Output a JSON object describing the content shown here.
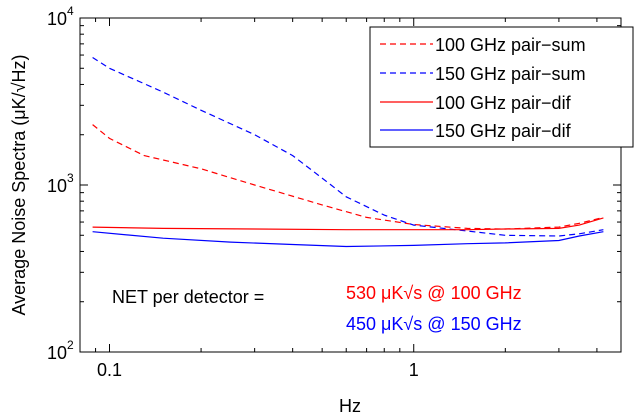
{
  "chart_data": {
    "type": "line",
    "title": "",
    "xlabel": "Hz",
    "ylabel": "Average Noise Spectra (μK/√Hz)",
    "xscale": "log",
    "yscale": "log",
    "xlim": [
      0.08,
      4.8
    ],
    "ylim": [
      100,
      10000
    ],
    "x_ticks": [
      {
        "value": 0.1,
        "label": "0.1"
      },
      {
        "value": 1,
        "label": "1"
      }
    ],
    "y_ticks": [
      {
        "value": 100,
        "base": "10",
        "exp": "2"
      },
      {
        "value": 1000,
        "base": "10",
        "exp": "3"
      },
      {
        "value": 10000,
        "base": "10",
        "exp": "4"
      }
    ],
    "grid": false,
    "legend_position": "top-right",
    "series": [
      {
        "name": "100 GHz pair−sum",
        "color": "#ff0000",
        "dash": "dashed",
        "points": [
          [
            0.088,
            2300
          ],
          [
            0.1,
            1900
          ],
          [
            0.13,
            1500
          ],
          [
            0.2,
            1250
          ],
          [
            0.3,
            1000
          ],
          [
            0.5,
            760
          ],
          [
            0.7,
            640
          ],
          [
            1.0,
            580
          ],
          [
            1.5,
            550
          ],
          [
            2.0,
            545
          ],
          [
            3.0,
            560
          ],
          [
            3.5,
            590
          ],
          [
            4.2,
            640
          ]
        ]
      },
      {
        "name": "150 GHz pair−sum",
        "color": "#0000ff",
        "dash": "dashed",
        "points": [
          [
            0.088,
            5800
          ],
          [
            0.1,
            5000
          ],
          [
            0.15,
            3600
          ],
          [
            0.2,
            2800
          ],
          [
            0.3,
            2000
          ],
          [
            0.4,
            1500
          ],
          [
            0.5,
            1100
          ],
          [
            0.6,
            850
          ],
          [
            0.8,
            660
          ],
          [
            1.0,
            575
          ],
          [
            1.5,
            530
          ],
          [
            2.0,
            500
          ],
          [
            3.0,
            495
          ],
          [
            3.5,
            510
          ],
          [
            4.2,
            540
          ]
        ]
      },
      {
        "name": "100 GHz pair−dif",
        "color": "#ff0000",
        "dash": "solid",
        "points": [
          [
            0.088,
            560
          ],
          [
            0.15,
            550
          ],
          [
            0.3,
            545
          ],
          [
            0.6,
            540
          ],
          [
            1.0,
            540
          ],
          [
            1.5,
            540
          ],
          [
            2.0,
            545
          ],
          [
            3.0,
            550
          ],
          [
            3.5,
            575
          ],
          [
            4.2,
            635
          ]
        ]
      },
      {
        "name": "150 GHz pair−dif",
        "color": "#0000ff",
        "dash": "solid",
        "points": [
          [
            0.088,
            525
          ],
          [
            0.15,
            480
          ],
          [
            0.25,
            455
          ],
          [
            0.4,
            440
          ],
          [
            0.6,
            428
          ],
          [
            1.0,
            435
          ],
          [
            1.5,
            445
          ],
          [
            2.0,
            450
          ],
          [
            3.0,
            465
          ],
          [
            3.5,
            495
          ],
          [
            4.2,
            525
          ]
        ]
      }
    ],
    "annotations": {
      "label": "NET per detector =",
      "line_100": "530 μK√s @ 100 GHz",
      "line_150": "450 μK√s @ 150 GHz",
      "color_100": "#ff0000",
      "color_150": "#0000ff"
    }
  }
}
